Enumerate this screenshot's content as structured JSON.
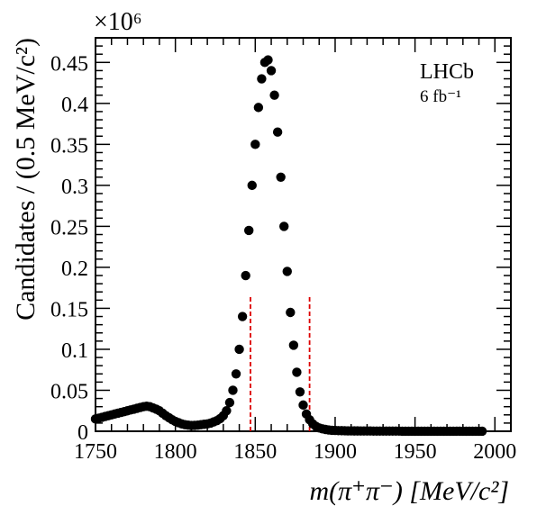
{
  "chart_data": {
    "type": "scatter",
    "title": "",
    "xlabel": "m(π⁺π⁻) [MeV/c²]",
    "ylabel": "Candidates / (0.5 MeV/c²)",
    "multiplier": "×10⁶",
    "xlim": [
      1750,
      2010
    ],
    "ylim": [
      0,
      0.48
    ],
    "x_ticks": [
      1750,
      1800,
      1850,
      1900,
      1950,
      2000
    ],
    "x_tick_labels": [
      "1750",
      "1800",
      "1850",
      "1900",
      "1950",
      "2000"
    ],
    "y_ticks": [
      0,
      0.05,
      0.1,
      0.15,
      0.2,
      0.25,
      0.3,
      0.35,
      0.4,
      0.45
    ],
    "y_tick_labels": [
      "0",
      "0.05",
      "0.1",
      "0.15",
      "0.2",
      "0.25",
      "0.3",
      "0.35",
      "0.4",
      "0.45"
    ],
    "grid": false,
    "marker_color": "#000000",
    "annotations": {
      "experiment": "LHCb",
      "luminosity": "6 fb⁻¹"
    },
    "signal_window": {
      "low": 1847,
      "high": 1884,
      "height": 0.165,
      "color": "#dd0000",
      "style": "dashed"
    },
    "series": [
      {
        "x": [
          1750,
          1752,
          1754,
          1756,
          1758,
          1760,
          1762,
          1764,
          1766,
          1768,
          1770,
          1772,
          1774,
          1776,
          1778,
          1780,
          1782,
          1784,
          1786,
          1788,
          1790,
          1792,
          1794,
          1796,
          1798,
          1800,
          1802,
          1804,
          1806,
          1808,
          1810,
          1812,
          1814,
          1816,
          1818,
          1820,
          1822,
          1824,
          1826,
          1828,
          1830,
          1832,
          1834,
          1836,
          1838,
          1840,
          1842,
          1844,
          1846,
          1848,
          1850,
          1852,
          1854,
          1856,
          1858,
          1860,
          1862,
          1864,
          1866,
          1868,
          1870,
          1872,
          1874,
          1876,
          1878,
          1880,
          1882,
          1884,
          1886,
          1888,
          1890,
          1892,
          1894,
          1896,
          1898,
          1900,
          1902,
          1904,
          1906,
          1908,
          1910,
          1912,
          1914,
          1916,
          1918,
          1920,
          1922,
          1924,
          1926,
          1928,
          1930,
          1932,
          1934,
          1936,
          1938,
          1940,
          1942,
          1944,
          1946,
          1948,
          1950,
          1952,
          1954,
          1956,
          1958,
          1960,
          1962,
          1964,
          1966,
          1968,
          1970,
          1972,
          1974,
          1976,
          1978,
          1980,
          1982,
          1984,
          1986,
          1988,
          1990,
          1992
        ],
        "y": [
          0.015,
          0.016,
          0.017,
          0.018,
          0.019,
          0.02,
          0.021,
          0.022,
          0.023,
          0.024,
          0.025,
          0.026,
          0.027,
          0.028,
          0.029,
          0.03,
          0.0305,
          0.03,
          0.0285,
          0.027,
          0.025,
          0.022,
          0.019,
          0.0165,
          0.014,
          0.012,
          0.0105,
          0.009,
          0.008,
          0.0075,
          0.007,
          0.0072,
          0.0075,
          0.008,
          0.0085,
          0.009,
          0.01,
          0.0115,
          0.013,
          0.0155,
          0.019,
          0.025,
          0.035,
          0.05,
          0.07,
          0.1,
          0.14,
          0.19,
          0.245,
          0.3,
          0.35,
          0.395,
          0.43,
          0.45,
          0.453,
          0.44,
          0.41,
          0.365,
          0.31,
          0.25,
          0.195,
          0.145,
          0.105,
          0.072,
          0.048,
          0.032,
          0.021,
          0.014,
          0.009,
          0.006,
          0.004,
          0.003,
          0.0022,
          0.0016,
          0.0012,
          0.001,
          0.0008,
          0.0007,
          0.0006,
          0.0005,
          0.0005,
          0.0004,
          0.0004,
          0.0003,
          0.0003,
          0.0003,
          0.0003,
          0.0002,
          0.0002,
          0.0002,
          0.0002,
          0.0002,
          0.0002,
          0.0002,
          0.0002,
          0.0002,
          0.0001,
          0.0001,
          0.0001,
          0.0001,
          0.0001,
          0.0001,
          0.0001,
          0.0001,
          0.0001,
          0.0001,
          0.0001,
          0.0001,
          0.0001,
          0.0001,
          0.0001,
          0.0001,
          0.0001,
          0.0001,
          0.0001,
          0.0001,
          0.0001,
          0.0001,
          0.0001,
          0.0001,
          0.0001,
          0.0001
        ]
      }
    ]
  }
}
